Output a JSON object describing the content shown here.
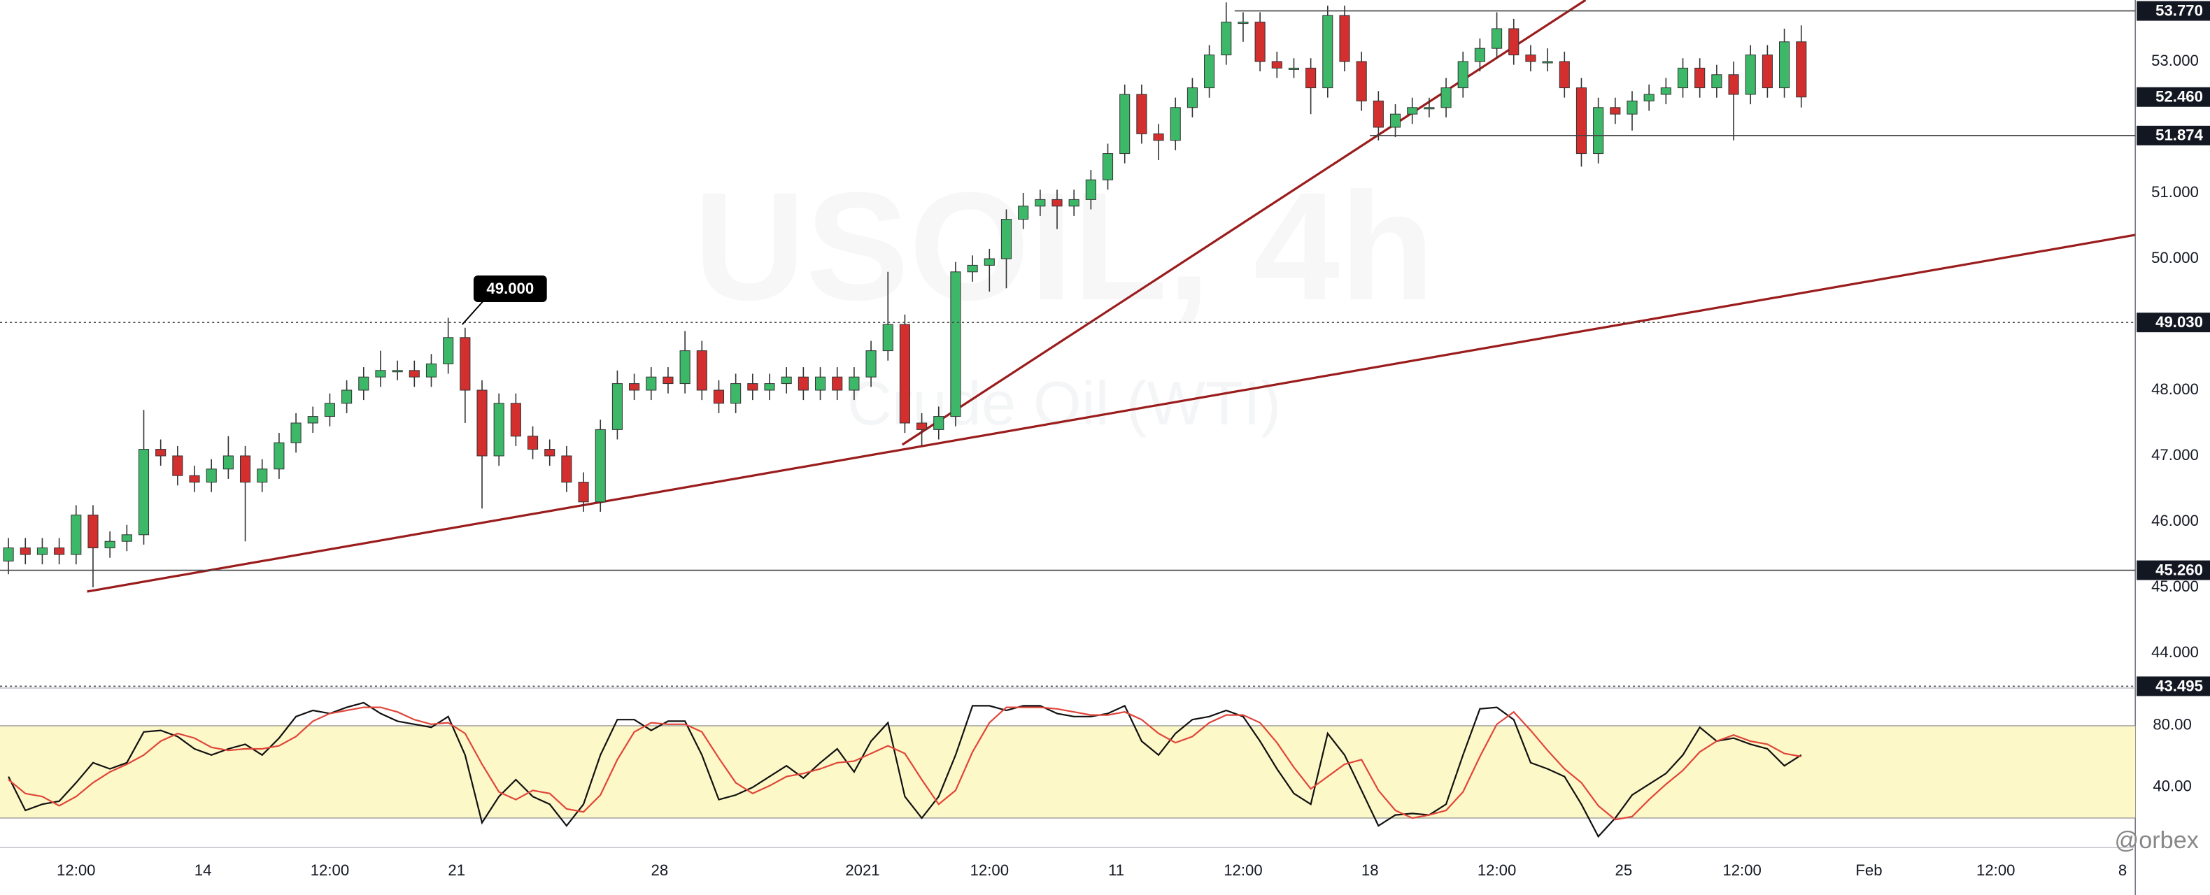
{
  "chart_data": {
    "type": "candlestick",
    "watermark": [
      "USOIL, 4h",
      "Crude Oil (WTI)"
    ],
    "up_color": "#3cb868",
    "down_color": "#d32f2f",
    "trendline_color": "#9b1c1c",
    "xlim": [
      0,
      252.5
    ],
    "ylim": [
      43.468,
      53.936
    ],
    "xticks": [
      {
        "value": 9,
        "label": "12:00"
      },
      {
        "value": 24,
        "label": "14"
      },
      {
        "value": 39,
        "label": "12:00"
      },
      {
        "value": 54,
        "label": "21"
      },
      {
        "value": 78,
        "label": "28"
      },
      {
        "value": 102,
        "label": "2021"
      },
      {
        "value": 117,
        "label": "12:00"
      },
      {
        "value": 132,
        "label": "11"
      },
      {
        "value": 147,
        "label": "12:00"
      },
      {
        "value": 162,
        "label": "18"
      },
      {
        "value": 177,
        "label": "12:00"
      },
      {
        "value": 192,
        "label": "25"
      },
      {
        "value": 206,
        "label": "12:00"
      },
      {
        "value": 221,
        "label": "Feb"
      },
      {
        "value": 236,
        "label": "12:00"
      },
      {
        "value": 251,
        "label": "8"
      }
    ],
    "yticks": [
      {
        "value": 44,
        "label": "44.000"
      },
      {
        "value": 45,
        "label": "45.000"
      },
      {
        "value": 46,
        "label": "46.000"
      },
      {
        "value": 47,
        "label": "47.000"
      },
      {
        "value": 48,
        "label": "48.000"
      },
      {
        "value": 50,
        "label": "50.000"
      },
      {
        "value": 51,
        "label": "51.000"
      },
      {
        "value": 53,
        "label": "53.000"
      }
    ],
    "x": [
      1,
      3,
      5,
      7,
      9,
      11,
      13,
      15,
      17,
      19,
      21,
      23,
      25,
      27,
      29,
      31,
      33,
      35,
      37,
      39,
      41,
      43,
      45,
      47,
      49,
      51,
      53,
      55,
      57,
      59,
      61,
      63,
      65,
      67,
      69,
      71,
      73,
      75,
      77,
      79,
      81,
      83,
      85,
      87,
      89,
      91,
      93,
      95,
      97,
      99,
      101,
      103,
      105,
      107,
      109,
      111,
      113,
      115,
      117,
      119,
      121,
      123,
      125,
      127,
      129,
      131,
      133,
      135,
      137,
      139,
      141,
      143,
      145,
      147,
      149,
      151,
      153,
      155,
      157,
      159,
      161,
      163,
      165,
      167,
      169,
      171,
      173,
      175,
      177,
      179,
      181,
      183,
      185,
      187,
      189,
      191,
      193,
      195,
      197,
      199,
      201,
      203,
      205,
      207,
      209,
      211,
      213
    ],
    "open": [
      45.4,
      45.6,
      45.5,
      45.6,
      45.5,
      46.1,
      45.6,
      45.7,
      45.8,
      47.1,
      47.0,
      46.7,
      46.6,
      46.8,
      47.0,
      46.6,
      46.8,
      47.2,
      47.5,
      47.6,
      47.8,
      48.0,
      48.2,
      48.3,
      48.3,
      48.2,
      48.4,
      48.8,
      48.0,
      47.0,
      47.8,
      47.3,
      47.1,
      47.0,
      46.6,
      46.3,
      47.4,
      48.1,
      48.0,
      48.2,
      48.1,
      48.6,
      48.0,
      47.8,
      48.1,
      48.0,
      48.1,
      48.2,
      48.0,
      48.2,
      48.0,
      48.2,
      48.6,
      49.0,
      47.5,
      47.4,
      47.6,
      49.8,
      49.9,
      50.0,
      50.6,
      50.8,
      50.9,
      50.8,
      50.9,
      51.2,
      51.6,
      52.5,
      51.9,
      51.8,
      52.3,
      52.6,
      53.1,
      53.6,
      53.6,
      53.0,
      52.9,
      52.9,
      52.6,
      53.7,
      53.0,
      52.4,
      52.0,
      52.2,
      52.3,
      52.3,
      52.6,
      53.0,
      53.2,
      53.5,
      53.1,
      53.0,
      53.0,
      52.6,
      51.6,
      52.3,
      52.2,
      52.4,
      52.5,
      52.6,
      52.9,
      52.6,
      52.8,
      52.5,
      53.1,
      52.6,
      53.3
    ],
    "high": [
      45.75,
      45.75,
      45.75,
      45.75,
      46.25,
      46.25,
      45.85,
      45.95,
      47.7,
      47.25,
      47.15,
      46.85,
      46.95,
      47.3,
      47.15,
      46.95,
      47.35,
      47.65,
      47.75,
      47.95,
      48.15,
      48.35,
      48.6,
      48.45,
      48.45,
      48.55,
      49.1,
      48.95,
      48.15,
      47.95,
      47.95,
      47.45,
      47.25,
      47.15,
      46.75,
      47.55,
      48.3,
      48.25,
      48.35,
      48.35,
      48.9,
      48.75,
      48.15,
      48.25,
      48.25,
      48.25,
      48.35,
      48.35,
      48.35,
      48.35,
      48.35,
      48.75,
      49.8,
      49.15,
      47.65,
      47.75,
      49.95,
      50.05,
      50.15,
      50.75,
      51.0,
      51.05,
      51.05,
      51.05,
      51.35,
      51.75,
      52.65,
      52.65,
      52.05,
      52.45,
      52.75,
      53.25,
      53.9,
      53.75,
      53.75,
      53.15,
      53.05,
      53.05,
      53.85,
      53.85,
      53.15,
      52.55,
      52.35,
      52.45,
      52.45,
      52.75,
      53.15,
      53.35,
      53.75,
      53.65,
      53.25,
      53.2,
      53.15,
      52.75,
      52.45,
      52.45,
      52.55,
      52.65,
      52.75,
      53.05,
      53.05,
      52.95,
      53.0,
      53.25,
      53.25,
      53.5,
      53.55
    ],
    "low": [
      45.2,
      45.35,
      45.35,
      45.35,
      45.35,
      45.0,
      45.45,
      45.55,
      45.65,
      46.85,
      46.55,
      46.45,
      46.45,
      46.65,
      45.7,
      46.45,
      46.65,
      47.05,
      47.35,
      47.45,
      47.65,
      47.85,
      48.05,
      48.15,
      48.05,
      48.05,
      48.25,
      47.5,
      46.2,
      46.85,
      47.15,
      46.95,
      46.85,
      46.45,
      46.15,
      46.15,
      47.25,
      47.85,
      47.85,
      47.95,
      47.95,
      47.85,
      47.65,
      47.65,
      47.85,
      47.85,
      47.95,
      47.85,
      47.85,
      47.85,
      47.85,
      48.05,
      48.45,
      47.35,
      47.15,
      47.25,
      47.45,
      49.65,
      49.5,
      49.55,
      50.45,
      50.65,
      50.45,
      50.65,
      50.75,
      51.05,
      51.45,
      51.75,
      51.5,
      51.65,
      52.15,
      52.45,
      52.95,
      53.3,
      52.85,
      52.75,
      52.75,
      52.2,
      52.45,
      52.85,
      52.25,
      51.8,
      51.85,
      52.05,
      52.15,
      52.15,
      52.45,
      52.85,
      53.05,
      52.95,
      52.85,
      52.85,
      52.45,
      51.4,
      51.45,
      52.05,
      51.95,
      52.25,
      52.35,
      52.45,
      52.45,
      52.45,
      51.8,
      52.35,
      52.45,
      52.45,
      52.3
    ],
    "close": [
      45.6,
      45.5,
      45.6,
      45.5,
      46.1,
      45.6,
      45.7,
      45.8,
      47.1,
      47.0,
      46.7,
      46.6,
      46.8,
      47.0,
      46.6,
      46.8,
      47.2,
      47.5,
      47.6,
      47.8,
      48.0,
      48.2,
      48.3,
      48.3,
      48.2,
      48.4,
      48.8,
      48.0,
      47.0,
      47.8,
      47.3,
      47.1,
      47.0,
      46.6,
      46.3,
      47.4,
      48.1,
      48.0,
      48.2,
      48.1,
      48.6,
      48.0,
      47.8,
      48.1,
      48.0,
      48.1,
      48.2,
      48.0,
      48.2,
      48.0,
      48.2,
      48.6,
      49.0,
      47.5,
      47.4,
      47.6,
      49.8,
      49.9,
      50.0,
      50.6,
      50.8,
      50.9,
      50.8,
      50.9,
      51.2,
      51.6,
      52.5,
      51.9,
      51.8,
      52.3,
      52.6,
      53.1,
      53.6,
      53.6,
      53.0,
      52.9,
      52.9,
      52.6,
      53.7,
      53.0,
      52.4,
      52.0,
      52.2,
      52.3,
      52.3,
      52.6,
      53.0,
      53.2,
      53.5,
      53.1,
      53.0,
      53.0,
      52.6,
      51.6,
      52.3,
      52.2,
      52.4,
      52.5,
      52.6,
      52.9,
      52.6,
      52.8,
      52.5,
      53.1,
      52.6,
      53.3,
      52.46
    ],
    "levels": [
      {
        "value": 53.77,
        "label": "53.770",
        "x0": 146,
        "style": "solid",
        "line": true
      },
      {
        "value": 52.46,
        "label": "52.460",
        "line": false
      },
      {
        "value": 51.874,
        "label": "51.874",
        "x0": 162,
        "style": "solid",
        "line": true
      },
      {
        "value": 49.03,
        "label": "49.030",
        "style": "dotted",
        "line": true
      },
      {
        "value": 45.26,
        "label": "45.260",
        "style": "solid",
        "line": true
      },
      {
        "value": 43.495,
        "label": "43.495",
        "style": "dotted",
        "line": true
      }
    ],
    "trendlines": [
      {
        "x": [
          10.3,
          252.5
        ],
        "y": [
          44.936,
          50.362
        ]
      },
      {
        "x": [
          106.7,
          187.5
        ],
        "y": [
          47.17,
          53.936
        ]
      }
    ],
    "annotation": {
      "value": 49,
      "label": "49.000",
      "x": 54
    },
    "indicator": {
      "type": "stochastic",
      "ylim": [
        1.8,
        104.5
      ],
      "yticks": [
        {
          "value": 80,
          "label": "80.00"
        },
        {
          "value": 40,
          "label": "40.00"
        }
      ],
      "band": [
        20,
        80
      ],
      "band_color": "#fdf8c8",
      "series": [
        {
          "color": "#111111",
          "values": [
            47,
            25,
            29,
            31,
            43,
            56,
            52,
            56,
            76,
            77,
            73,
            65,
            61,
            65,
            68,
            61,
            72,
            86,
            90,
            88,
            92,
            95,
            88,
            83,
            81,
            79,
            86,
            61,
            17,
            34,
            45,
            34,
            29,
            15,
            29,
            61,
            84,
            84,
            77,
            83,
            83,
            61,
            32,
            35,
            40,
            47,
            54,
            46,
            56,
            65,
            50,
            70,
            82,
            34,
            20,
            34,
            61,
            93,
            93,
            90,
            93,
            93,
            88,
            86,
            86,
            88,
            93,
            70,
            61,
            75,
            84,
            86,
            90,
            86,
            70,
            52,
            36,
            29,
            75,
            61,
            38,
            15,
            22,
            23,
            22,
            29,
            61,
            91,
            92,
            84,
            56,
            52,
            47,
            29,
            8,
            20,
            35,
            42,
            49,
            61,
            79,
            70,
            72,
            68,
            65,
            54,
            61
          ]
        },
        {
          "color": "#e0463a",
          "values": [
            45,
            36,
            34,
            28,
            34,
            43,
            50,
            55,
            61,
            70,
            75,
            72,
            66,
            64,
            65,
            65,
            67,
            73,
            83,
            88,
            90,
            92,
            92,
            89,
            84,
            81,
            82,
            75,
            55,
            37,
            32,
            38,
            36,
            26,
            24,
            35,
            58,
            76,
            82,
            81,
            81,
            76,
            59,
            43,
            36,
            41,
            47,
            49,
            52,
            56,
            57,
            62,
            67,
            62,
            45,
            29,
            38,
            63,
            82,
            92,
            92,
            92,
            91,
            89,
            87,
            87,
            89,
            84,
            75,
            69,
            73,
            82,
            87,
            87,
            82,
            69,
            53,
            39,
            47,
            55,
            58,
            38,
            25,
            20,
            22,
            25,
            37,
            60,
            81,
            89,
            77,
            64,
            52,
            43,
            28,
            19,
            21,
            32,
            42,
            51,
            63,
            70,
            74,
            70,
            68,
            62,
            60
          ]
        }
      ]
    },
    "logo": "@orbex"
  }
}
